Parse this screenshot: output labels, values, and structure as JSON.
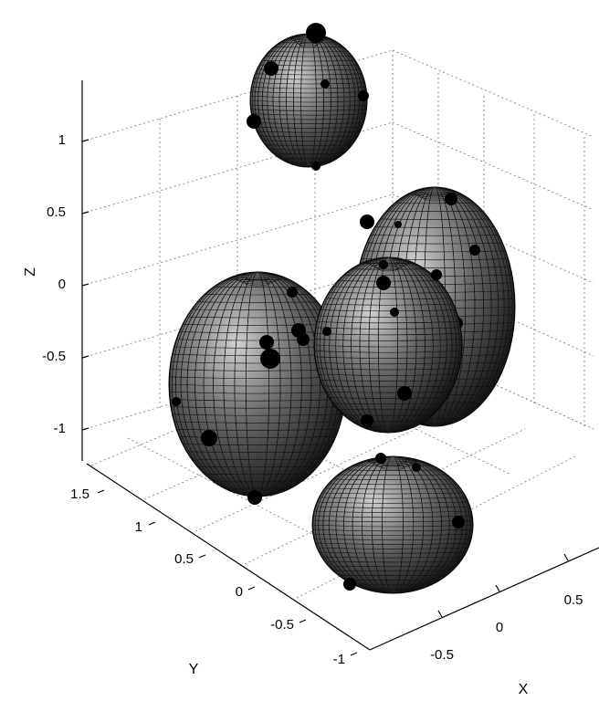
{
  "chart_data": {
    "type": "3d-surface",
    "xlabel": "X",
    "ylabel": "Y",
    "zlabel": "Z",
    "x_ticks": [
      "-0.5",
      "0",
      "0.5"
    ],
    "y_ticks": [
      "-1",
      "-0.5",
      "0",
      "0.5",
      "1",
      "1.5"
    ],
    "z_ticks": [
      "-1",
      "-0.5",
      "0",
      "0.5",
      "1"
    ],
    "grid": true,
    "surface_color": "#2a2a2a",
    "mesh_color": "#111111",
    "objects": [
      {
        "name": "top ellipsoid"
      },
      {
        "name": "back right ellipsoid"
      },
      {
        "name": "left ellipsoid"
      },
      {
        "name": "center ellipsoid"
      },
      {
        "name": "bottom ellipsoid"
      }
    ]
  }
}
